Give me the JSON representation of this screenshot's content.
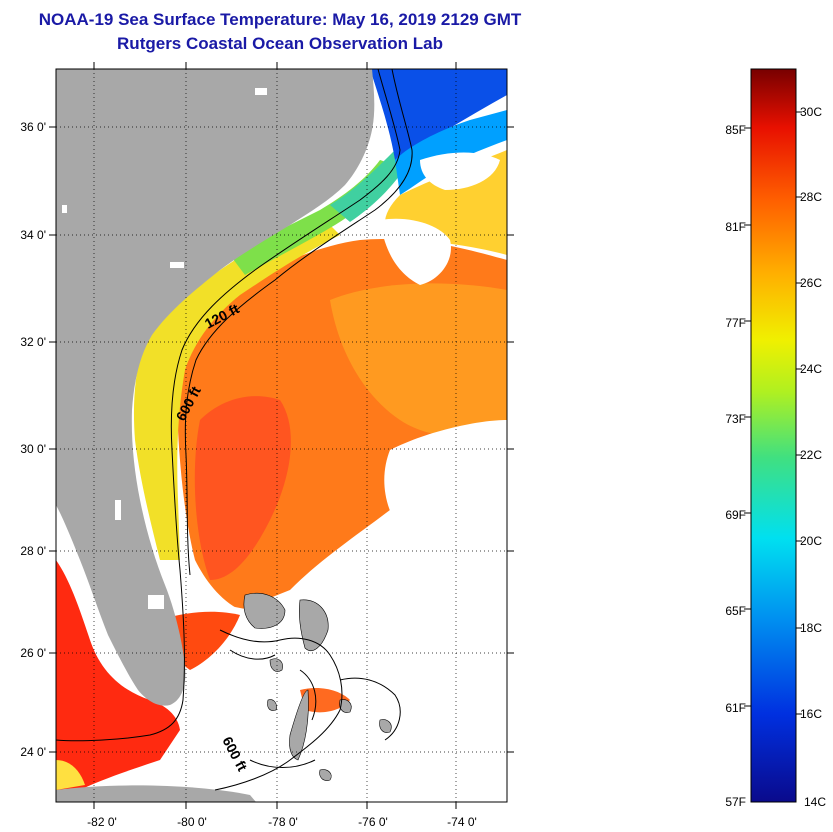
{
  "title": "NOAA-19 Sea Surface Temperature:  May 16, 2019 2129 GMT",
  "subtitle": "Rutgers Coastal Ocean Observation Lab",
  "map": {
    "lat_ticks": [
      "36 0'",
      "34 0'",
      "32 0'",
      "30 0'",
      "28 0'",
      "26 0'",
      "24 0'"
    ],
    "lon_ticks": [
      "-82 0'",
      "-80 0'",
      "-78 0'",
      "-76 0'",
      "-74 0'"
    ],
    "contour_labels": [
      {
        "id": "c120",
        "text": "120 ft"
      },
      {
        "id": "c600a",
        "text": "600 ft"
      },
      {
        "id": "c600b",
        "text": "600 ft"
      }
    ],
    "land_color": "#a8a8a8"
  },
  "colorbar": {
    "fahrenheit": [
      "85F",
      "81F",
      "77F",
      "73F",
      "69F",
      "65F",
      "61F",
      "57F"
    ],
    "celsius": [
      "30C",
      "28C",
      "26C",
      "24C",
      "22C",
      "20C",
      "18C",
      "16C",
      "14C"
    ]
  }
}
